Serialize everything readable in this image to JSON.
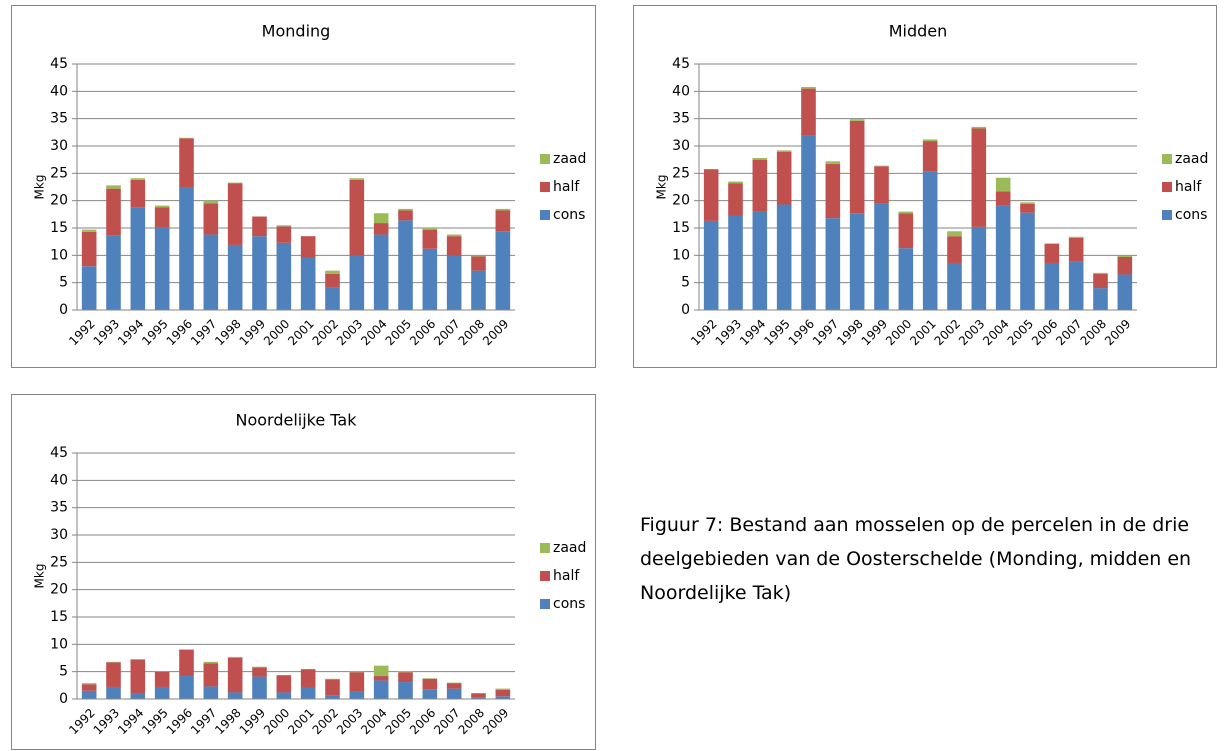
{
  "chart_data": [
    {
      "type": "stacked-bar",
      "title": "Monding",
      "y_label": "Mkg",
      "categories": [
        "1992",
        "1993",
        "1994",
        "1995",
        "1996",
        "1997",
        "1998",
        "1999",
        "2000",
        "2001",
        "2002",
        "2003",
        "2004",
        "2005",
        "2006",
        "2007",
        "2008",
        "2009"
      ],
      "series": [
        {
          "name": "cons",
          "color": "#4f81bd",
          "values": [
            8,
            13.7,
            18.7,
            15.1,
            22.5,
            13.8,
            11.9,
            13.5,
            12.3,
            9.6,
            4.1,
            9.9,
            13.8,
            16.4,
            11.2,
            9.9,
            7.2,
            14.4
          ]
        },
        {
          "name": "half",
          "color": "#c0504d",
          "values": [
            6.3,
            8.5,
            5.1,
            3.7,
            8.9,
            5.7,
            11.3,
            3.6,
            3.0,
            3.9,
            2.5,
            13.9,
            2.1,
            1.8,
            3.5,
            3.6,
            2.6,
            3.8
          ]
        },
        {
          "name": "zaad",
          "color": "#9bbb59",
          "values": [
            0.4,
            0.6,
            0.3,
            0.3,
            0.1,
            0.5,
            0.1,
            0,
            0.2,
            0,
            0.6,
            0.3,
            1.8,
            0.3,
            0.3,
            0.3,
            0.1,
            0.3
          ]
        }
      ],
      "ylim": [
        0,
        45
      ],
      "yticks": [
        0,
        5,
        10,
        15,
        20,
        25,
        30,
        35,
        40,
        45
      ],
      "grid": true,
      "legend": "right"
    },
    {
      "type": "stacked-bar",
      "title": "Midden",
      "y_label": "Mkg",
      "categories": [
        "1992",
        "1993",
        "1994",
        "1995",
        "1996",
        "1997",
        "1998",
        "1999",
        "2000",
        "2001",
        "2002",
        "2003",
        "2004",
        "2005",
        "2006",
        "2007",
        "2008",
        "2009"
      ],
      "series": [
        {
          "name": "cons",
          "color": "#4f81bd",
          "values": [
            16.3,
            17.2,
            18.0,
            19.3,
            31.9,
            16.8,
            17.7,
            19.5,
            11.3,
            25.3,
            8.6,
            15.2,
            19.1,
            17.8,
            8.6,
            8.8,
            4.0,
            6.5
          ]
        },
        {
          "name": "half",
          "color": "#c0504d",
          "values": [
            9.4,
            6.0,
            9.5,
            9.6,
            8.6,
            9.9,
            16.9,
            6.8,
            6.4,
            5.6,
            4.9,
            18.0,
            2.6,
            1.6,
            3.5,
            4.4,
            2.6,
            3.2
          ]
        },
        {
          "name": "zaad",
          "color": "#9bbb59",
          "values": [
            0.1,
            0.3,
            0.3,
            0.3,
            0.3,
            0.5,
            0.3,
            0.1,
            0.3,
            0.3,
            0.9,
            0.3,
            2.5,
            0.3,
            0.1,
            0.2,
            0.2,
            0.2
          ]
        }
      ],
      "ylim": [
        0,
        45
      ],
      "yticks": [
        0,
        5,
        10,
        15,
        20,
        25,
        30,
        35,
        40,
        45
      ],
      "grid": true,
      "legend": "right"
    },
    {
      "type": "stacked-bar",
      "title": "Noordelijke Tak",
      "y_label": "Mkg",
      "categories": [
        "1992",
        "1993",
        "1994",
        "1995",
        "1996",
        "1997",
        "1998",
        "1999",
        "2000",
        "2001",
        "2002",
        "2003",
        "2004",
        "2005",
        "2006",
        "2007",
        "2008",
        "2009"
      ],
      "series": [
        {
          "name": "cons",
          "color": "#4f81bd",
          "values": [
            1.5,
            2.2,
            1.1,
            2.2,
            4.2,
            2.3,
            1.2,
            4.1,
            1.2,
            2.1,
            0.6,
            1.3,
            3.4,
            3.1,
            1.8,
            1.9,
            0.3,
            0.5
          ]
        },
        {
          "name": "half",
          "color": "#c0504d",
          "values": [
            1.2,
            4.5,
            6.1,
            2.8,
            4.8,
            4.2,
            6.3,
            1.7,
            3.1,
            3.3,
            3.0,
            3.6,
            0.8,
            1.8,
            1.9,
            1.0,
            0.7,
            1.2
          ]
        },
        {
          "name": "zaad",
          "color": "#9bbb59",
          "values": [
            0.2,
            0.1,
            0.1,
            0.1,
            0.1,
            0.3,
            0.2,
            0.1,
            0.1,
            0.1,
            0.1,
            0.1,
            1.9,
            0.2,
            0.1,
            0.1,
            0.1,
            0.2
          ]
        }
      ],
      "ylim": [
        0,
        45
      ],
      "yticks": [
        0,
        5,
        10,
        15,
        20,
        25,
        30,
        35,
        40,
        45
      ],
      "grid": true,
      "legend": "right"
    }
  ],
  "caption": "Figuur 7: Bestand aan mosselen op de percelen in de drie deelgebieden van de Oosterschelde (Monding, midden en Noordelijke Tak)"
}
